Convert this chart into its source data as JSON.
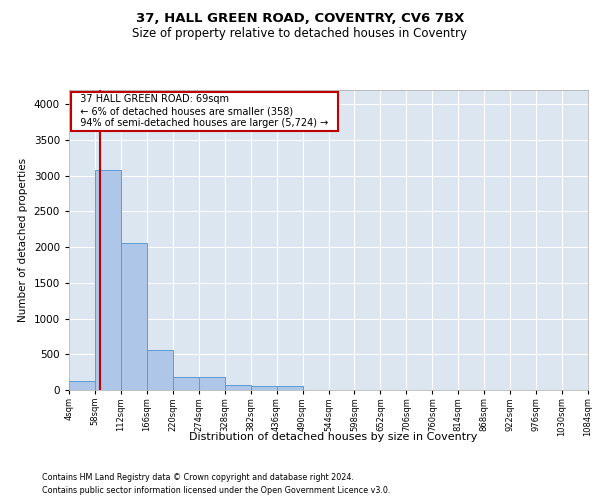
{
  "title_line1": "37, HALL GREEN ROAD, COVENTRY, CV6 7BX",
  "title_line2": "Size of property relative to detached houses in Coventry",
  "xlabel": "Distribution of detached houses by size in Coventry",
  "ylabel": "Number of detached properties",
  "footer_line1": "Contains HM Land Registry data © Crown copyright and database right 2024.",
  "footer_line2": "Contains public sector information licensed under the Open Government Licence v3.0.",
  "bar_edges": [
    4,
    58,
    112,
    166,
    220,
    274,
    328,
    382,
    436,
    490,
    544,
    598,
    652,
    706,
    760,
    814,
    868,
    922,
    976,
    1030,
    1084
  ],
  "bar_heights": [
    130,
    3080,
    2060,
    560,
    185,
    185,
    75,
    55,
    55,
    0,
    0,
    0,
    0,
    0,
    0,
    0,
    0,
    0,
    0,
    0
  ],
  "bar_color": "#aec6e8",
  "bar_edge_color": "#5b9bd5",
  "annotation_text": "  37 HALL GREEN ROAD: 69sqm  \n  ← 6% of detached houses are smaller (358)  \n  94% of semi-detached houses are larger (5,724) →  ",
  "vline_x": 69,
  "vline_color": "#c00000",
  "annotation_box_color": "#ffffff",
  "annotation_box_edge": "#c00000",
  "ylim": [
    0,
    4200
  ],
  "xlim": [
    4,
    1084
  ],
  "plot_bg_color": "#dce6f1",
  "grid_color": "#ffffff",
  "tick_labels": [
    "4sqm",
    "58sqm",
    "112sqm",
    "166sqm",
    "220sqm",
    "274sqm",
    "328sqm",
    "382sqm",
    "436sqm",
    "490sqm",
    "544sqm",
    "598sqm",
    "652sqm",
    "706sqm",
    "760sqm",
    "814sqm",
    "868sqm",
    "922sqm",
    "976sqm",
    "1030sqm",
    "1084sqm"
  ]
}
